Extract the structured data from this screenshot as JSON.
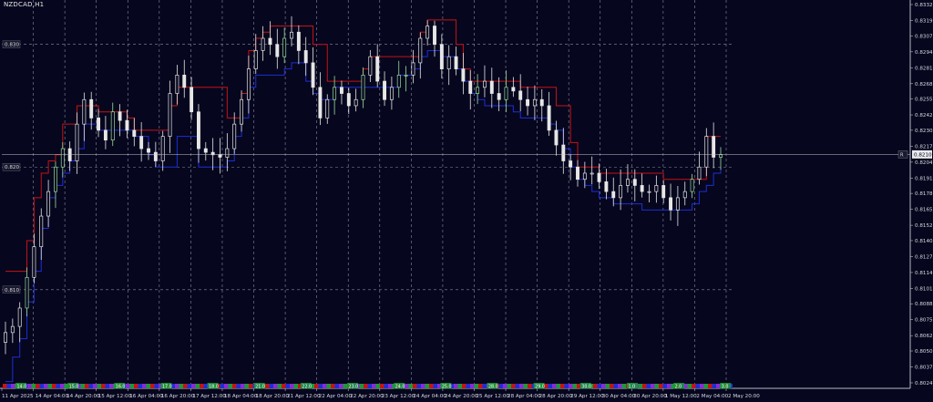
{
  "window": {
    "symbol_title": "NZDCAD,H1"
  },
  "colors": {
    "background": "#06061e",
    "candle": "#e6e6e6",
    "bull_candle": "#9adf9a",
    "upper_band": "#c41414",
    "lower_band": "#1d2fd4",
    "session_colors": [
      "#c41414",
      "#1d2fd4",
      "#8a2ad4",
      "#1a9a3a"
    ]
  },
  "price_axis": {
    "ticks": [
      "0.83325",
      "0.83195",
      "0.83070",
      "0.82940",
      "0.82810",
      "0.82680",
      "0.82555",
      "0.82425",
      "0.82300",
      "0.82170",
      "0.82040",
      "0.81910",
      "0.81785",
      "0.81655",
      "0.81525",
      "0.81400",
      "0.81270",
      "0.81140",
      "0.81010",
      "0.80885",
      "0.80755",
      "0.80625",
      "0.80500",
      "0.80370",
      "0.80240"
    ],
    "current_price": "0.82103",
    "bid_marker": "R"
  },
  "levels": [
    {
      "label": "0.830",
      "value": 0.83
    },
    {
      "label": "0.820",
      "value": 0.82
    },
    {
      "label": "0.810",
      "value": 0.81
    }
  ],
  "time_axis": {
    "labels": [
      "11 Apr 2025",
      "14 Apr 04:00",
      "14 Apr 20:00",
      "15 Apr 12:00",
      "16 Apr 04:00",
      "16 Apr 20:00",
      "17 Apr 12:00",
      "18 Apr 04:00",
      "18 Apr 20:00",
      "21 Apr 12:00",
      "22 Apr 04:00",
      "22 Apr 20:00",
      "23 Apr 12:00",
      "24 Apr 04:00",
      "24 Apr 20:00",
      "25 Apr 12:00",
      "28 Apr 04:00",
      "28 Apr 20:00",
      "29 Apr 12:00",
      "30 Apr 04:00",
      "30 Apr 20:00",
      "1 May 12:00",
      "2 May 04:00",
      "2 May 20:00"
    ]
  },
  "day_markers": [
    "14.0",
    "15.0",
    "16.0",
    "17.0",
    "18.0",
    "21.0",
    "22.0",
    "23.0",
    "24.0",
    "25.0",
    "28.0",
    "29.0",
    "30.0",
    "1.0",
    "2.0",
    "3.0"
  ],
  "chart_data": {
    "type": "candlestick",
    "symbol": "NZDCAD",
    "timeframe": "H1",
    "price_range": [
      0.8024,
      0.83325
    ],
    "series": [
      {
        "name": "",
        "kind": "close",
        "values": [
          0.8065,
          0.807,
          0.8085,
          0.811,
          0.8135,
          0.816,
          0.818,
          0.82,
          0.8215,
          0.8205,
          0.8235,
          0.8255,
          0.824,
          0.823,
          0.8222,
          0.8245,
          0.8238,
          0.823,
          0.8225,
          0.8215,
          0.8212,
          0.8205,
          0.8225,
          0.826,
          0.8275,
          0.8265,
          0.8245,
          0.8215,
          0.8212,
          0.821,
          0.8208,
          0.8215,
          0.8235,
          0.8255,
          0.828,
          0.8295,
          0.8305,
          0.83,
          0.829,
          0.8305,
          0.831,
          0.8295,
          0.8285,
          0.8265,
          0.824,
          0.8255,
          0.8265,
          0.826,
          0.825,
          0.8255,
          0.8275,
          0.829,
          0.827,
          0.8255,
          0.8265,
          0.8275,
          0.8275,
          0.8285,
          0.8305,
          0.8315,
          0.83,
          0.828,
          0.829,
          0.828,
          0.827,
          0.826,
          0.8265,
          0.827,
          0.826,
          0.8255,
          0.8265,
          0.8262,
          0.8255,
          0.825,
          0.8255,
          0.825,
          0.823,
          0.8218,
          0.8205,
          0.82,
          0.819,
          0.8195,
          0.8195,
          0.8188,
          0.818,
          0.8175,
          0.8185,
          0.819,
          0.8185,
          0.818,
          0.818,
          0.8185,
          0.8175,
          0.8165,
          0.8175,
          0.818,
          0.819,
          0.82,
          0.8225,
          0.8208,
          0.821
        ]
      },
      {
        "name": "",
        "kind": "upper_band",
        "values": [
          0.8115,
          0.8115,
          0.8115,
          0.814,
          0.8175,
          0.8195,
          0.8205,
          0.821,
          0.8235,
          0.8235,
          0.825,
          0.825,
          0.825,
          0.8245,
          0.8245,
          0.8245,
          0.8245,
          0.824,
          0.823,
          0.823,
          0.823,
          0.823,
          0.823,
          0.825,
          0.8265,
          0.8265,
          0.8265,
          0.8265,
          0.8265,
          0.8265,
          0.8265,
          0.824,
          0.824,
          0.826,
          0.8295,
          0.8305,
          0.831,
          0.8315,
          0.8315,
          0.8315,
          0.8315,
          0.8315,
          0.8315,
          0.83,
          0.83,
          0.827,
          0.827,
          0.827,
          0.827,
          0.827,
          0.828,
          0.829,
          0.829,
          0.829,
          0.829,
          0.829,
          0.829,
          0.829,
          0.831,
          0.832,
          0.832,
          0.832,
          0.832,
          0.83,
          0.828,
          0.827,
          0.827,
          0.827,
          0.827,
          0.827,
          0.827,
          0.827,
          0.8265,
          0.8265,
          0.8265,
          0.8265,
          0.8265,
          0.825,
          0.825,
          0.822,
          0.82,
          0.82,
          0.82,
          0.8195,
          0.8195,
          0.8195,
          0.8195,
          0.8195,
          0.8195,
          0.8195,
          0.8195,
          0.8195,
          0.819,
          0.819,
          0.819,
          0.819,
          0.819,
          0.819,
          0.8225,
          0.8225,
          0.8225
        ]
      },
      {
        "name": "",
        "kind": "lower_band",
        "values": [
          0.8025,
          0.8045,
          0.806,
          0.809,
          0.8115,
          0.815,
          0.8175,
          0.8185,
          0.8195,
          0.8205,
          0.8215,
          0.8235,
          0.8235,
          0.823,
          0.823,
          0.823,
          0.823,
          0.823,
          0.8225,
          0.8225,
          0.821,
          0.82,
          0.82,
          0.82,
          0.8225,
          0.8225,
          0.8225,
          0.82,
          0.82,
          0.82,
          0.82,
          0.8205,
          0.8225,
          0.824,
          0.8265,
          0.8275,
          0.8275,
          0.8275,
          0.8275,
          0.828,
          0.8285,
          0.8285,
          0.827,
          0.826,
          0.8255,
          0.8255,
          0.8265,
          0.8265,
          0.8265,
          0.8265,
          0.8265,
          0.8265,
          0.8265,
          0.8265,
          0.8265,
          0.8275,
          0.8275,
          0.828,
          0.829,
          0.8295,
          0.8295,
          0.829,
          0.829,
          0.828,
          0.827,
          0.826,
          0.8255,
          0.825,
          0.825,
          0.825,
          0.825,
          0.8245,
          0.824,
          0.824,
          0.824,
          0.824,
          0.8235,
          0.823,
          0.8215,
          0.82,
          0.819,
          0.8185,
          0.818,
          0.8175,
          0.8175,
          0.817,
          0.817,
          0.817,
          0.817,
          0.8165,
          0.8165,
          0.8165,
          0.8165,
          0.8165,
          0.8165,
          0.8165,
          0.817,
          0.818,
          0.8185,
          0.8195,
          0.82
        ]
      }
    ]
  }
}
